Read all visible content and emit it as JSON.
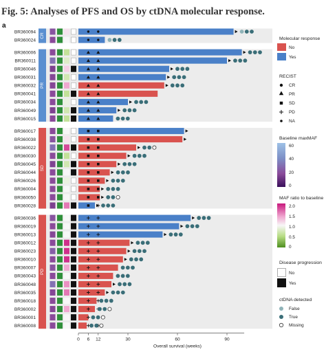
{
  "figure": {
    "title": "Fig. 5: Analyses of PFS and OS by ctDNA molecular response.",
    "panel_label": "a"
  },
  "colors": {
    "yes": "#4a80c8",
    "no": "#d9534f",
    "group_cr_pr": "#5a8fd0",
    "group_sd_pd": "#d9534f",
    "panel_bg": "#ececec",
    "dot_false": "#3a6e78",
    "dot_true": "#3a6e78"
  },
  "chart_data": {
    "type": "bar",
    "orientation": "horizontal",
    "xlabel": "Overall survival (weeks)",
    "x_ticks": [
      0,
      6,
      12,
      30,
      60,
      90
    ],
    "xlim": [
      0,
      108
    ],
    "groups": [
      {
        "name": "CR",
        "samples": [
          "BR360094",
          "BR360024"
        ]
      },
      {
        "name": "PR",
        "samples": [
          "BR360006",
          "BR360011",
          "BR360046",
          "BR360031",
          "BR360032",
          "BR360041",
          "BR360034",
          "BR360049",
          "BR360015"
        ]
      },
      {
        "name": "SD",
        "samples": [
          "BR360017",
          "BR360038",
          "BR360022",
          "BR360030",
          "BR360045",
          "BR360044",
          "BR360026",
          "BR360004",
          "BR360050",
          "BR360028"
        ]
      },
      {
        "name": "PD",
        "samples": [
          "BR360036",
          "BR360019",
          "BR360013",
          "BR360012",
          "BR360023",
          "BR360010",
          "BR360007",
          "BR360043",
          "BR360048",
          "BR360035",
          "BR360018",
          "BR360002",
          "BR360001",
          "BR360008"
        ]
      }
    ],
    "rows": [
      {
        "id": "BR360094",
        "os": 94,
        "resp": "Yes",
        "recist": [
          "CR",
          "CR"
        ],
        "arrow": true,
        "ct": [
          "F",
          "T",
          "T"
        ],
        "maf": 0.35,
        "ratio": 1.1,
        "prog": "No"
      },
      {
        "id": "BR360024",
        "os": 16,
        "resp": "Yes",
        "recist": [
          "CR",
          "CR"
        ],
        "arrow": false,
        "ct": [
          "F",
          "T",
          "T"
        ],
        "maf": 0.3,
        "ratio": 1.0,
        "prog": "No"
      },
      {
        "id": "BR360006",
        "os": 99,
        "resp": "Yes",
        "recist": [
          "PR",
          "PR"
        ],
        "arrow": true,
        "ct": [
          "T",
          "T",
          "T"
        ],
        "maf": 0.3,
        "ratio": 0.6,
        "prog": "No"
      },
      {
        "id": "BR360011",
        "os": 90,
        "resp": "Yes",
        "recist": [
          "PR",
          "PR"
        ],
        "arrow": true,
        "ct": [
          "T",
          "T",
          "T"
        ],
        "maf": 0.5,
        "ratio": 0.8,
        "prog": "No"
      },
      {
        "id": "BR360046",
        "os": 55,
        "resp": "Yes",
        "recist": [
          "PR",
          "PR"
        ],
        "arrow": true,
        "ct": [
          "T",
          "T",
          "T"
        ],
        "maf": 0.25,
        "ratio": 1.2,
        "prog": "Yes"
      },
      {
        "id": "BR360031",
        "os": 53,
        "resp": "Yes",
        "recist": [
          "PR",
          "PR"
        ],
        "arrow": true,
        "ct": [
          "T",
          "T",
          "T"
        ],
        "maf": 0.28,
        "ratio": 0.7,
        "prog": "No"
      },
      {
        "id": "BR360032",
        "os": 52,
        "resp": "No",
        "recist": [
          "PR",
          "PR"
        ],
        "arrow": true,
        "ct": [
          "T",
          "T",
          "T"
        ],
        "maf": 0.28,
        "ratio": 1.4,
        "prog": "No"
      },
      {
        "id": "BR360041",
        "os": 48,
        "resp": "No",
        "recist": [
          "PR",
          "PR"
        ],
        "arrow": false,
        "ct": [],
        "maf": 0.3,
        "ratio": 0.6,
        "prog": "Yes"
      },
      {
        "id": "BR360034",
        "os": 30,
        "resp": "Yes",
        "recist": [
          "PR",
          "PR"
        ],
        "arrow": true,
        "ct": [
          "T",
          "T",
          "T"
        ],
        "maf": 0.3,
        "ratio": 0.9,
        "prog": "No"
      },
      {
        "id": "BR360049",
        "os": 23,
        "resp": "Yes",
        "recist": [
          "PR",
          "PR"
        ],
        "arrow": true,
        "ct": [
          "T",
          "T",
          "T"
        ],
        "maf": 0.26,
        "ratio": 0.7,
        "prog": "Yes"
      },
      {
        "id": "BR360015",
        "os": 21,
        "resp": "Yes",
        "recist": [
          "PR",
          "PR"
        ],
        "arrow": false,
        "ct": [
          "T",
          "T",
          "T"
        ],
        "maf": 0.3,
        "ratio": 0.6,
        "prog": "Yes"
      },
      {
        "id": "BR360017",
        "os": 64,
        "resp": "Yes",
        "recist": [
          "SD",
          "SD"
        ],
        "arrow": true,
        "ct": [],
        "maf": 0.3,
        "ratio": 1.0,
        "prog": "No"
      },
      {
        "id": "BR360038",
        "os": 63,
        "resp": "No",
        "recist": [
          "SD",
          "SD"
        ],
        "arrow": true,
        "ct": [],
        "maf": 0.35,
        "ratio": 1.1,
        "prog": "No"
      },
      {
        "id": "BR360022",
        "os": 35,
        "resp": "No",
        "recist": [
          "SD",
          "SD"
        ],
        "arrow": true,
        "ct": [
          "T",
          "T",
          "M"
        ],
        "maf": 0.5,
        "ratio": 1.8,
        "prog": "Yes"
      },
      {
        "id": "BR360030",
        "os": 29,
        "resp": "No",
        "recist": [
          "SD",
          "SD"
        ],
        "arrow": true,
        "ct": [
          "T",
          "T",
          "T"
        ],
        "maf": 0.3,
        "ratio": 0.6,
        "prog": "No"
      },
      {
        "id": "BR360045",
        "os": 23,
        "resp": "No",
        "recist": [
          "SD",
          "SD"
        ],
        "arrow": true,
        "ct": [
          "T",
          "T",
          "T"
        ],
        "maf": 0.26,
        "ratio": 0.7,
        "prog": "Yes"
      },
      {
        "id": "BR360044",
        "os": 19,
        "resp": "No",
        "recist": [
          "SD",
          "SD"
        ],
        "arrow": true,
        "ct": [
          "T",
          "T",
          "T"
        ],
        "maf": 0.3,
        "ratio": 1.0,
        "prog": "Yes"
      },
      {
        "id": "BR360026",
        "os": 16,
        "resp": "No",
        "recist": [
          "SD",
          "SD"
        ],
        "arrow": true,
        "ct": [
          "T",
          "T",
          "T"
        ],
        "maf": 0.3,
        "ratio": 0.9,
        "prog": "No"
      },
      {
        "id": "BR360004",
        "os": 13,
        "resp": "No",
        "recist": [
          "SD",
          "SD"
        ],
        "arrow": true,
        "ct": [
          "T",
          "T",
          "T"
        ],
        "maf": 0.3,
        "ratio": 1.0,
        "prog": "No"
      },
      {
        "id": "BR360050",
        "os": 13,
        "resp": "No",
        "recist": [
          "SD",
          "SD"
        ],
        "arrow": true,
        "ct": [
          "T",
          "T",
          "M"
        ],
        "maf": 0.3,
        "ratio": 1.0,
        "prog": "No"
      },
      {
        "id": "BR360028",
        "os": 10,
        "resp": "Yes",
        "recist": [
          "SD",
          "PD"
        ],
        "arrow": true,
        "ct": [
          "T",
          "T",
          "T"
        ],
        "maf": 0.25,
        "ratio": 1.6,
        "prog": "Yes"
      },
      {
        "id": "BR360036",
        "os": 68,
        "resp": "Yes",
        "recist": [
          "PD",
          "PD"
        ],
        "arrow": true,
        "ct": [
          "T",
          "T",
          "T"
        ],
        "maf": 0.35,
        "ratio": 1.0,
        "prog": "Yes"
      },
      {
        "id": "BR360019",
        "os": 61,
        "resp": "Yes",
        "recist": [
          "PD",
          "PD"
        ],
        "arrow": true,
        "ct": [
          "T",
          "T",
          "T"
        ],
        "maf": 0.3,
        "ratio": 1.0,
        "prog": "Yes"
      },
      {
        "id": "BR360013",
        "os": 51,
        "resp": "Yes",
        "recist": [
          "PD",
          "PD"
        ],
        "arrow": true,
        "ct": [
          "T",
          "T",
          "T"
        ],
        "maf": 0.28,
        "ratio": 1.0,
        "prog": "Yes"
      },
      {
        "id": "BR360012",
        "os": 31,
        "resp": "No",
        "recist": [
          "PD",
          "PD"
        ],
        "arrow": true,
        "ct": [
          "T",
          "T",
          "T"
        ],
        "maf": 0.3,
        "ratio": 1.9,
        "prog": "Yes"
      },
      {
        "id": "BR360023",
        "os": 29,
        "resp": "No",
        "recist": [
          "PD",
          "PD"
        ],
        "arrow": true,
        "ct": [
          "T",
          "T",
          "T"
        ],
        "maf": 0.4,
        "ratio": 1.9,
        "prog": "Yes"
      },
      {
        "id": "BR360010",
        "os": 27,
        "resp": "No",
        "recist": [
          "PD",
          "PD"
        ],
        "arrow": true,
        "ct": [
          "T",
          "T",
          "T"
        ],
        "maf": 0.3,
        "ratio": 1.9,
        "prog": "Yes"
      },
      {
        "id": "BR360007",
        "os": 24,
        "resp": "No",
        "recist": [
          "PD",
          "PD"
        ],
        "arrow": false,
        "ct": [
          "T",
          "T",
          "T"
        ],
        "maf": 0.35,
        "ratio": 1.4,
        "prog": "Yes"
      },
      {
        "id": "BR360043",
        "os": 21,
        "resp": "No",
        "recist": [
          "PD",
          "PD"
        ],
        "arrow": false,
        "ct": [
          "T",
          "T",
          "T"
        ],
        "maf": 0.3,
        "ratio": 1.0,
        "prog": "Yes"
      },
      {
        "id": "BR360048",
        "os": 20,
        "resp": "No",
        "recist": [
          "PD",
          "PD"
        ],
        "arrow": true,
        "ct": [
          "T",
          "T",
          "T"
        ],
        "maf": 0.5,
        "ratio": 1.5,
        "prog": "Yes"
      },
      {
        "id": "BR360035",
        "os": 16,
        "resp": "No",
        "recist": [
          "PD",
          "PD"
        ],
        "arrow": true,
        "ct": [
          "T",
          "T",
          "T"
        ],
        "maf": 0.28,
        "ratio": 1.6,
        "prog": "Yes"
      },
      {
        "id": "BR360018",
        "os": 11,
        "resp": "No",
        "recist": [
          "PD",
          "PD"
        ],
        "arrow": false,
        "ct": [
          "T",
          "T",
          "T"
        ],
        "maf": 0.3,
        "ratio": 1.0,
        "prog": "Yes"
      },
      {
        "id": "BR360002",
        "os": 10,
        "resp": "No",
        "recist": [
          "PD",
          "PD"
        ],
        "arrow": false,
        "ct": [
          "T",
          "T",
          "M"
        ],
        "maf": 0.28,
        "ratio": 1.4,
        "prog": "Yes"
      },
      {
        "id": "BR360001",
        "os": 6,
        "resp": "No",
        "recist": [
          "PD",
          "PD"
        ],
        "arrow": false,
        "ct": [
          "T",
          "T",
          "M"
        ],
        "maf": 0.3,
        "ratio": 1.0,
        "prog": "Yes"
      },
      {
        "id": "BR360008",
        "os": 5,
        "resp": "No",
        "recist": [
          "PD",
          "PD"
        ],
        "arrow": false,
        "ct": [
          "T",
          "T",
          "M"
        ],
        "maf": 0.3,
        "ratio": 1.0,
        "prog": "Yes"
      }
    ]
  },
  "legend": {
    "molecular_response": {
      "title": "Molecular response",
      "items": [
        "No",
        "Yes"
      ]
    },
    "recist": {
      "title": "RECIST",
      "items": [
        "CR",
        "PR",
        "SD",
        "PD",
        "NA"
      ]
    },
    "maxmaf": {
      "title": "Baseline maxMAF",
      "ticks": [
        "60",
        "40",
        "20",
        "0"
      ]
    },
    "ratio": {
      "title": "MAF ratio to baseline",
      "ticks": [
        "2.0",
        "1.5",
        "1.0",
        "0.5",
        "0"
      ]
    },
    "progression": {
      "title": "Disease progression",
      "items": [
        "No",
        "Yes"
      ]
    },
    "ctdna": {
      "title": "ctDNA detected",
      "items": [
        "False",
        "True",
        "Missing"
      ]
    }
  }
}
